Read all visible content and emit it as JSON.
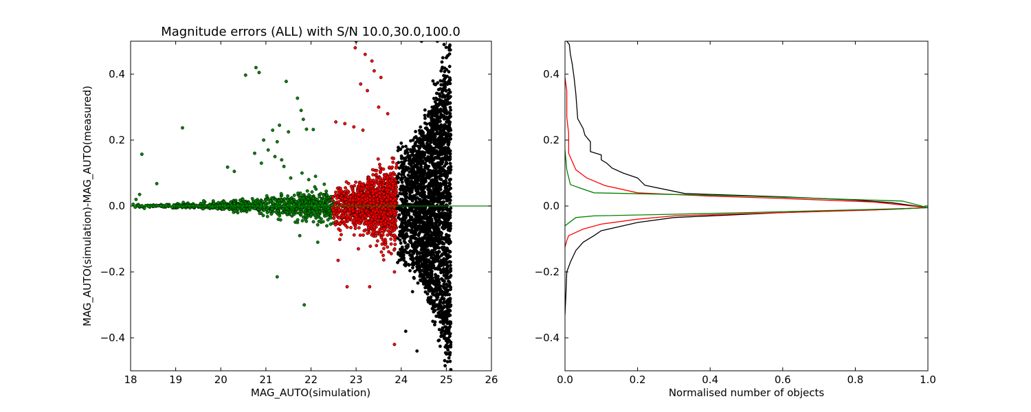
{
  "chart_data": [
    {
      "type": "scatter",
      "title": "Magnitude errors (ALL) with S/N 10.0,30.0,100.0",
      "xlabel": "MAG_AUTO(simulation)",
      "ylabel": "MAG_AUTO(simulation)-MAG_AUTO(measured)",
      "xlim": [
        18,
        26
      ],
      "ylim": [
        -0.5,
        0.5
      ],
      "xticks": [
        18,
        19,
        20,
        21,
        22,
        23,
        24,
        25,
        26
      ],
      "xtick_labels": [
        "18",
        "19",
        "20",
        "21",
        "22",
        "23",
        "24",
        "25",
        "26"
      ],
      "yticks": [
        -0.4,
        -0.2,
        0.0,
        0.2,
        0.4
      ],
      "ytick_labels": [
        "−0.4",
        "−0.2",
        "0.0",
        "0.2",
        "0.4"
      ],
      "reference_line": {
        "y": 0.0,
        "color": "#008000"
      },
      "series": [
        {
          "color": "#008000",
          "mag_range": [
            18.0,
            22.5
          ],
          "scatter_sigma": [
            0.002,
            0.025
          ],
          "n_dense_points": 900,
          "points": [
            [
              18.25,
              0.157
            ],
            [
              18.12,
              0.02
            ],
            [
              18.2,
              0.035
            ],
            [
              18.58,
              0.068
            ],
            [
              19.15,
              0.237
            ],
            [
              20.55,
              0.397
            ],
            [
              20.78,
              0.42
            ],
            [
              20.85,
              0.405
            ],
            [
              21.45,
              0.378
            ],
            [
              21.7,
              0.327
            ],
            [
              21.78,
              0.29
            ],
            [
              21.83,
              0.263
            ],
            [
              21.3,
              0.245
            ],
            [
              21.15,
              0.23
            ],
            [
              21.5,
              0.225
            ],
            [
              21.9,
              0.233
            ],
            [
              22.05,
              0.232
            ],
            [
              20.95,
              0.2
            ],
            [
              21.25,
              0.195
            ],
            [
              21.05,
              0.17
            ],
            [
              20.75,
              0.16
            ],
            [
              21.2,
              0.15
            ],
            [
              21.35,
              0.14
            ],
            [
              21.4,
              0.12
            ],
            [
              20.9,
              0.13
            ],
            [
              20.15,
              0.118
            ],
            [
              20.3,
              0.105
            ],
            [
              21.8,
              0.1
            ],
            [
              22.1,
              0.09
            ],
            [
              21.55,
              0.085
            ],
            [
              21.95,
              0.08
            ],
            [
              21.7,
              -0.05
            ],
            [
              21.75,
              -0.09
            ],
            [
              22.15,
              -0.11
            ],
            [
              21.25,
              -0.215
            ],
            [
              21.85,
              -0.3
            ]
          ]
        },
        {
          "color": "#ff0000",
          "mag_range": [
            22.45,
            23.9
          ],
          "scatter_sigma": [
            0.03,
            0.06
          ],
          "n_dense_points": 1400,
          "points": [
            [
              23.0,
              0.5
            ],
            [
              22.98,
              0.48
            ],
            [
              23.2,
              0.46
            ],
            [
              23.35,
              0.44
            ],
            [
              23.4,
              0.41
            ],
            [
              23.55,
              0.39
            ],
            [
              23.1,
              0.37
            ],
            [
              23.25,
              0.35
            ],
            [
              23.5,
              0.3
            ],
            [
              23.7,
              0.28
            ],
            [
              22.55,
              0.255
            ],
            [
              22.75,
              0.25
            ],
            [
              22.95,
              0.24
            ],
            [
              23.15,
              0.23
            ],
            [
              22.6,
              -0.165
            ],
            [
              22.8,
              -0.245
            ],
            [
              23.3,
              -0.245
            ],
            [
              23.85,
              -0.2
            ],
            [
              23.85,
              -0.42
            ],
            [
              23.6,
              -0.15
            ],
            [
              23.05,
              -0.13
            ],
            [
              23.45,
              -0.12
            ]
          ]
        },
        {
          "color": "#000000",
          "mag_range": [
            23.9,
            25.1
          ],
          "scatter_sigma": [
            0.06,
            0.18
          ],
          "n_dense_points": 2600,
          "points": [
            [
              24.1,
              -0.38
            ],
            [
              24.35,
              -0.44
            ],
            [
              24.7,
              -0.35
            ],
            [
              24.85,
              -0.33
            ],
            [
              25.0,
              -0.34
            ],
            [
              24.25,
              -0.26
            ],
            [
              24.55,
              -0.245
            ],
            [
              25.05,
              -0.32
            ],
            [
              24.9,
              -0.28
            ],
            [
              24.45,
              0.5
            ],
            [
              24.8,
              0.5
            ],
            [
              24.95,
              0.49
            ],
            [
              25.0,
              0.45
            ]
          ]
        }
      ]
    },
    {
      "type": "line",
      "xlabel": "Normalised number of objects",
      "ylabel": "",
      "xlim": [
        0.0,
        1.0
      ],
      "ylim": [
        -0.5,
        0.5
      ],
      "xticks": [
        0.0,
        0.2,
        0.4,
        0.6,
        0.8,
        1.0
      ],
      "xtick_labels": [
        "0.0",
        "0.2",
        "0.4",
        "0.6",
        "0.8",
        "1.0"
      ],
      "yticks": [
        -0.4,
        -0.2,
        0.0,
        0.2,
        0.4
      ],
      "ytick_labels": [
        "−0.4",
        "−0.2",
        "0.0",
        "0.2",
        "0.4"
      ],
      "series": [
        {
          "color": "#000000",
          "points": [
            [
              0.005,
              0.5
            ],
            [
              0.012,
              0.49
            ],
            [
              0.015,
              0.46
            ],
            [
              0.02,
              0.43
            ],
            [
              0.025,
              0.39
            ],
            [
              0.03,
              0.34
            ],
            [
              0.032,
              0.31
            ],
            [
              0.035,
              0.265
            ],
            [
              0.05,
              0.235
            ],
            [
              0.055,
              0.215
            ],
            [
              0.07,
              0.195
            ],
            [
              0.07,
              0.165
            ],
            [
              0.1,
              0.155
            ],
            [
              0.1,
              0.14
            ],
            [
              0.115,
              0.13
            ],
            [
              0.13,
              0.115
            ],
            [
              0.16,
              0.1
            ],
            [
              0.2,
              0.085
            ],
            [
              0.22,
              0.063
            ],
            [
              0.33,
              0.038
            ],
            [
              0.6,
              0.028
            ],
            [
              0.8,
              0.018
            ],
            [
              0.9,
              0.01
            ],
            [
              1.0,
              -0.005
            ],
            [
              0.9,
              -0.01
            ],
            [
              0.6,
              -0.02
            ],
            [
              0.3,
              -0.035
            ],
            [
              0.2,
              -0.05
            ],
            [
              0.1,
              -0.075
            ],
            [
              0.08,
              -0.09
            ],
            [
              0.05,
              -0.11
            ],
            [
              0.03,
              -0.135
            ],
            [
              0.015,
              -0.17
            ],
            [
              0.005,
              -0.2
            ],
            [
              0.002,
              -0.28
            ],
            [
              0.0,
              -0.33
            ]
          ]
        },
        {
          "color": "#ff0000",
          "points": [
            [
              0.0,
              0.39
            ],
            [
              0.005,
              0.35
            ],
            [
              0.005,
              0.27
            ],
            [
              0.01,
              0.22
            ],
            [
              0.01,
              0.16
            ],
            [
              0.03,
              0.11
            ],
            [
              0.06,
              0.085
            ],
            [
              0.11,
              0.062
            ],
            [
              0.2,
              0.04
            ],
            [
              0.4,
              0.03
            ],
            [
              0.6,
              0.023
            ],
            [
              0.85,
              0.012
            ],
            [
              1.0,
              -0.005
            ],
            [
              0.85,
              -0.012
            ],
            [
              0.6,
              -0.02
            ],
            [
              0.3,
              -0.03
            ],
            [
              0.2,
              -0.04
            ],
            [
              0.1,
              -0.055
            ],
            [
              0.05,
              -0.07
            ],
            [
              0.01,
              -0.09
            ],
            [
              0.005,
              -0.105
            ],
            [
              0.0,
              -0.125
            ]
          ]
        },
        {
          "color": "#008000",
          "points": [
            [
              0.0,
              0.17
            ],
            [
              0.005,
              0.11
            ],
            [
              0.015,
              0.065
            ],
            [
              0.04,
              0.055
            ],
            [
              0.08,
              0.04
            ],
            [
              0.3,
              0.035
            ],
            [
              0.5,
              0.03
            ],
            [
              0.93,
              0.015
            ],
            [
              1.0,
              -0.005
            ],
            [
              0.93,
              -0.008
            ],
            [
              0.5,
              -0.02
            ],
            [
              0.3,
              -0.025
            ],
            [
              0.08,
              -0.03
            ],
            [
              0.03,
              -0.035
            ],
            [
              0.0,
              -0.06
            ]
          ]
        }
      ]
    }
  ]
}
